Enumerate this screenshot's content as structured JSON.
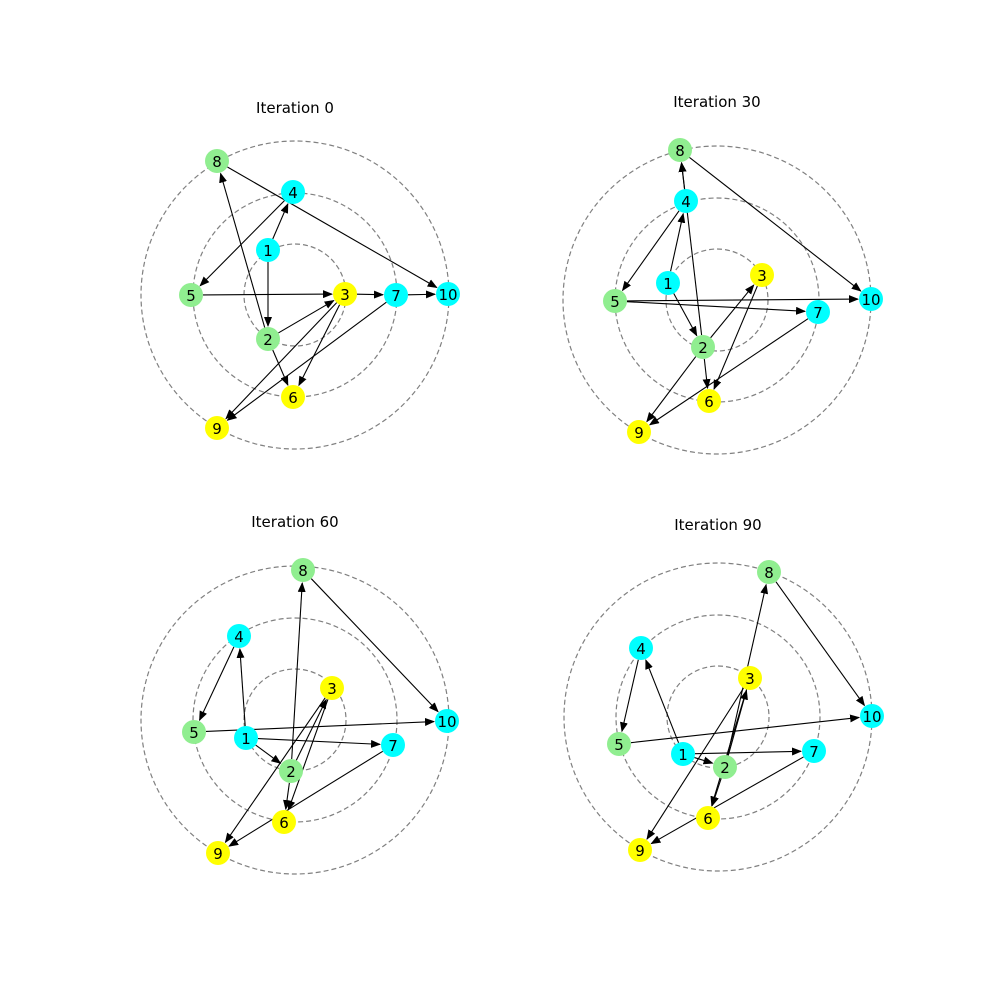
{
  "colors": {
    "cyan": "#00ffff",
    "green": "#90ee90",
    "yellow": "#ffff00",
    "ring": "#808080",
    "edge": "#000000"
  },
  "graph": {
    "node_colors": {
      "1": "cyan",
      "2": "green",
      "3": "yellow",
      "4": "cyan",
      "5": "green",
      "6": "yellow",
      "7": "cyan",
      "8": "green",
      "9": "yellow",
      "10": "cyan"
    }
  },
  "panels": [
    {
      "title": "Iteration 0",
      "edges": [
        [
          1,
          4
        ],
        [
          1,
          2
        ],
        [
          2,
          8
        ],
        [
          2,
          3
        ],
        [
          2,
          6
        ],
        [
          4,
          5
        ],
        [
          5,
          3
        ],
        [
          3,
          7
        ],
        [
          3,
          6
        ],
        [
          3,
          9
        ],
        [
          7,
          10
        ],
        [
          7,
          9
        ],
        [
          8,
          10
        ]
      ]
    },
    {
      "title": "Iteration 30",
      "edges": [
        [
          1,
          4
        ],
        [
          1,
          2
        ],
        [
          2,
          8
        ],
        [
          2,
          3
        ],
        [
          2,
          6
        ],
        [
          2,
          9
        ],
        [
          4,
          5
        ],
        [
          4,
          8
        ],
        [
          5,
          10
        ],
        [
          5,
          7
        ],
        [
          3,
          6
        ],
        [
          7,
          9
        ],
        [
          8,
          10
        ]
      ]
    },
    {
      "title": "Iteration 60",
      "edges": [
        [
          1,
          4
        ],
        [
          1,
          2
        ],
        [
          1,
          7
        ],
        [
          2,
          8
        ],
        [
          2,
          3
        ],
        [
          2,
          6
        ],
        [
          4,
          5
        ],
        [
          5,
          10
        ],
        [
          3,
          6
        ],
        [
          3,
          9
        ],
        [
          7,
          9
        ],
        [
          8,
          10
        ]
      ]
    },
    {
      "title": "Iteration 90",
      "edges": [
        [
          1,
          4
        ],
        [
          1,
          2
        ],
        [
          1,
          7
        ],
        [
          2,
          8
        ],
        [
          2,
          3
        ],
        [
          2,
          6
        ],
        [
          4,
          5
        ],
        [
          5,
          10
        ],
        [
          3,
          6
        ],
        [
          3,
          9
        ],
        [
          7,
          9
        ],
        [
          8,
          10
        ]
      ]
    }
  ]
}
